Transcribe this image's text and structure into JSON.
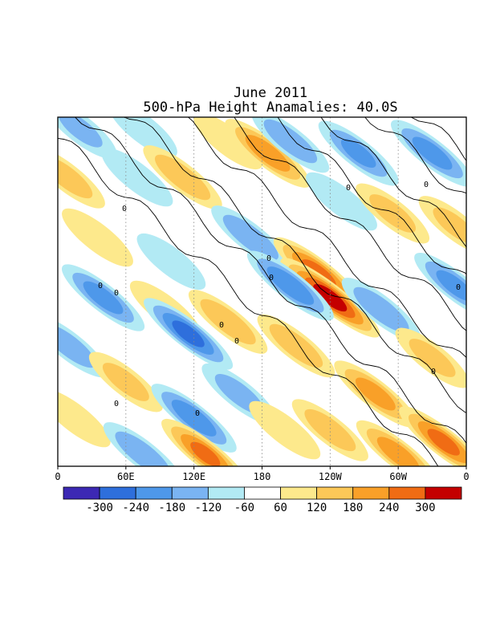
{
  "chart_data": {
    "type": "heatmap",
    "title": "June 2011",
    "subtitle": "500-hPa Height Anamalies: 40.0S",
    "x_ticks": [
      "0",
      "60E",
      "120E",
      "180",
      "120W",
      "60W",
      "0"
    ],
    "x_tick_lon": [
      0,
      60,
      120,
      180,
      240,
      300,
      360
    ],
    "xlim": [
      0,
      360
    ],
    "ylim_days": [
      1,
      30
    ],
    "grid": "dotted meridians at 60E, 120E, 180, 120W, 60W",
    "legend": "colorbar-bottom",
    "colorbar": {
      "labels": [
        "-300",
        "-240",
        "-180",
        "-120",
        "-60",
        "60",
        "120",
        "180",
        "240",
        "300"
      ],
      "colors": [
        "#3c28b4",
        "#2e6fdc",
        "#4e98ea",
        "#7ab4f2",
        "#b2eaf4",
        "#ffffff",
        "#fde98c",
        "#fcc858",
        "#f9a028",
        "#f06c14",
        "#c40000"
      ]
    },
    "contour_label": "0",
    "anomalies": [
      {
        "day": 2,
        "lon": 20,
        "v": -120
      },
      {
        "day": 2,
        "lon": 75,
        "v": -90
      },
      {
        "day": 3,
        "lon": 150,
        "v": 90
      },
      {
        "day": 4,
        "lon": 185,
        "v": 220
      },
      {
        "day": 3,
        "lon": 205,
        "v": -160
      },
      {
        "day": 4,
        "lon": 265,
        "v": -180
      },
      {
        "day": 4,
        "lon": 330,
        "v": -200
      },
      {
        "day": 6,
        "lon": 8,
        "v": 150
      },
      {
        "day": 6,
        "lon": 110,
        "v": 170
      },
      {
        "day": 6,
        "lon": 70,
        "v": -110
      },
      {
        "day": 8,
        "lon": 250,
        "v": -110
      },
      {
        "day": 9,
        "lon": 295,
        "v": 130
      },
      {
        "day": 10,
        "lon": 350,
        "v": 120
      },
      {
        "day": 11,
        "lon": 170,
        "v": -170
      },
      {
        "day": 11,
        "lon": 35,
        "v": 110
      },
      {
        "day": 13,
        "lon": 100,
        "v": -90
      },
      {
        "day": 14,
        "lon": 230,
        "v": 260
      },
      {
        "day": 16,
        "lon": 240,
        "v": 330
      },
      {
        "day": 15,
        "lon": 205,
        "v": -230
      },
      {
        "day": 15,
        "lon": 350,
        "v": -190
      },
      {
        "day": 16,
        "lon": 40,
        "v": -200
      },
      {
        "day": 17,
        "lon": 95,
        "v": 110
      },
      {
        "day": 17,
        "lon": 285,
        "v": -170
      },
      {
        "day": 18,
        "lon": 150,
        "v": 170
      },
      {
        "day": 19,
        "lon": 115,
        "v": -250
      },
      {
        "day": 20,
        "lon": 210,
        "v": 160
      },
      {
        "day": 20,
        "lon": 10,
        "v": -160
      },
      {
        "day": 21,
        "lon": 330,
        "v": 130
      },
      {
        "day": 23,
        "lon": 60,
        "v": 130
      },
      {
        "day": 24,
        "lon": 280,
        "v": 200
      },
      {
        "day": 24,
        "lon": 160,
        "v": -140
      },
      {
        "day": 26,
        "lon": 15,
        "v": 110
      },
      {
        "day": 26,
        "lon": 120,
        "v": -220
      },
      {
        "day": 27,
        "lon": 200,
        "v": 110
      },
      {
        "day": 27,
        "lon": 240,
        "v": 150
      },
      {
        "day": 28,
        "lon": 340,
        "v": 250
      },
      {
        "day": 29,
        "lon": 75,
        "v": -170
      },
      {
        "day": 29,
        "lon": 130,
        "v": 240
      },
      {
        "day": 29,
        "lon": 300,
        "v": 210
      }
    ]
  }
}
